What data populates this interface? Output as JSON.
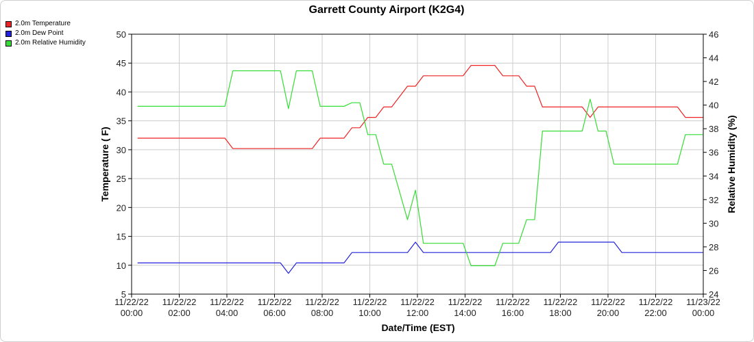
{
  "chart_data": {
    "type": "line",
    "title": "Garrett County Airport (K2G4)",
    "xlabel": "Date/Time (EST)",
    "ylabel": "Temperature ( F)",
    "ylabel_right": "Relative Humidity (%)",
    "ylim": [
      5,
      50
    ],
    "ylim_right": [
      24,
      46
    ],
    "xlim": [
      "11/22/22 00:00",
      "11/23/22 00:00"
    ],
    "grid": true,
    "legend_placement": "top-left",
    "x_ticks": [
      {
        "date": "11/22/22",
        "time": "00:00"
      },
      {
        "date": "11/22/22",
        "time": "02:00"
      },
      {
        "date": "11/22/22",
        "time": "04:00"
      },
      {
        "date": "11/22/22",
        "time": "06:00"
      },
      {
        "date": "11/22/22",
        "time": "08:00"
      },
      {
        "date": "11/22/22",
        "time": "10:00"
      },
      {
        "date": "11/22/22",
        "time": "12:00"
      },
      {
        "date": "11/22/22",
        "time": "14:00"
      },
      {
        "date": "11/22/22",
        "time": "16:00"
      },
      {
        "date": "11/22/22",
        "time": "18:00"
      },
      {
        "date": "11/22/22",
        "time": "20:00"
      },
      {
        "date": "11/22/22",
        "time": "22:00"
      },
      {
        "date": "11/23/22",
        "time": "00:00"
      }
    ],
    "y_ticks_left": [
      5,
      10,
      15,
      20,
      25,
      30,
      35,
      40,
      45,
      50
    ],
    "y_ticks_right": [
      24,
      26,
      28,
      30,
      32,
      34,
      36,
      38,
      40,
      42,
      44,
      46
    ],
    "series": [
      {
        "name": "2.0m Temperature",
        "color": "#ee2222",
        "axis": "left",
        "points": [
          [
            "11/22/22 00:15",
            32.0
          ],
          [
            "11/22/22 03:55",
            32.0
          ],
          [
            "11/22/22 04:15",
            30.2
          ],
          [
            "11/22/22 07:35",
            30.2
          ],
          [
            "11/22/22 07:55",
            32.0
          ],
          [
            "11/22/22 08:55",
            32.0
          ],
          [
            "11/22/22 09:15",
            33.8
          ],
          [
            "11/22/22 09:35",
            33.8
          ],
          [
            "11/22/22 09:55",
            35.6
          ],
          [
            "11/22/22 10:15",
            35.6
          ],
          [
            "11/22/22 10:35",
            37.4
          ],
          [
            "11/22/22 10:55",
            37.4
          ],
          [
            "11/22/22 11:35",
            41.0
          ],
          [
            "11/22/22 11:55",
            41.0
          ],
          [
            "11/22/22 12:15",
            42.8
          ],
          [
            "11/22/22 13:55",
            42.8
          ],
          [
            "11/22/22 14:15",
            44.6
          ],
          [
            "11/22/22 15:15",
            44.6
          ],
          [
            "11/22/22 15:35",
            42.8
          ],
          [
            "11/22/22 16:15",
            42.8
          ],
          [
            "11/22/22 16:35",
            41.0
          ],
          [
            "11/22/22 16:55",
            41.0
          ],
          [
            "11/22/22 17:15",
            37.4
          ],
          [
            "11/22/22 18:55",
            37.4
          ],
          [
            "11/22/22 19:15",
            35.6
          ],
          [
            "11/22/22 19:35",
            37.4
          ],
          [
            "11/22/22 22:55",
            37.4
          ],
          [
            "11/22/22 23:15",
            35.6
          ],
          [
            "11/22/22 23:59",
            35.6
          ]
        ]
      },
      {
        "name": "2.0m Dew Point",
        "color": "#2222dd",
        "axis": "left",
        "points": [
          [
            "11/22/22 00:15",
            10.4
          ],
          [
            "11/22/22 06:15",
            10.4
          ],
          [
            "11/22/22 06:35",
            8.6
          ],
          [
            "11/22/22 06:55",
            10.4
          ],
          [
            "11/22/22 08:55",
            10.4
          ],
          [
            "11/22/22 09:15",
            12.2
          ],
          [
            "11/22/22 11:35",
            12.2
          ],
          [
            "11/22/22 11:55",
            14.0
          ],
          [
            "11/22/22 12:15",
            12.2
          ],
          [
            "11/22/22 17:35",
            12.2
          ],
          [
            "11/22/22 17:55",
            14.0
          ],
          [
            "11/22/22 20:15",
            14.0
          ],
          [
            "11/22/22 20:35",
            12.2
          ],
          [
            "11/22/22 23:59",
            12.2
          ]
        ]
      },
      {
        "name": "2.0m Relative Humidity",
        "color": "#33dd33",
        "axis": "right",
        "points": [
          [
            "11/22/22 00:15",
            39.9
          ],
          [
            "11/22/22 03:55",
            39.9
          ],
          [
            "11/22/22 04:15",
            42.9
          ],
          [
            "11/22/22 06:15",
            42.9
          ],
          [
            "11/22/22 06:35",
            39.7
          ],
          [
            "11/22/22 06:55",
            42.9
          ],
          [
            "11/22/22 07:35",
            42.9
          ],
          [
            "11/22/22 07:55",
            39.9
          ],
          [
            "11/22/22 08:55",
            39.9
          ],
          [
            "11/22/22 09:15",
            40.2
          ],
          [
            "11/22/22 09:35",
            40.2
          ],
          [
            "11/22/22 09:55",
            37.5
          ],
          [
            "11/22/22 10:15",
            37.5
          ],
          [
            "11/22/22 10:35",
            35.0
          ],
          [
            "11/22/22 10:55",
            35.0
          ],
          [
            "11/22/22 11:35",
            30.3
          ],
          [
            "11/22/22 11:55",
            32.8
          ],
          [
            "11/22/22 12:15",
            28.3
          ],
          [
            "11/22/22 13:55",
            28.3
          ],
          [
            "11/22/22 14:15",
            26.4
          ],
          [
            "11/22/22 15:15",
            26.4
          ],
          [
            "11/22/22 15:35",
            28.3
          ],
          [
            "11/22/22 16:15",
            28.3
          ],
          [
            "11/22/22 16:35",
            30.3
          ],
          [
            "11/22/22 16:55",
            30.3
          ],
          [
            "11/22/22 17:15",
            37.8
          ],
          [
            "11/22/22 18:55",
            37.8
          ],
          [
            "11/22/22 19:15",
            40.5
          ],
          [
            "11/22/22 19:35",
            37.8
          ],
          [
            "11/22/22 19:55",
            37.8
          ],
          [
            "11/22/22 20:15",
            35.0
          ],
          [
            "11/22/22 22:55",
            35.0
          ],
          [
            "11/22/22 23:15",
            37.5
          ],
          [
            "11/22/22 23:59",
            37.5
          ]
        ]
      }
    ]
  }
}
